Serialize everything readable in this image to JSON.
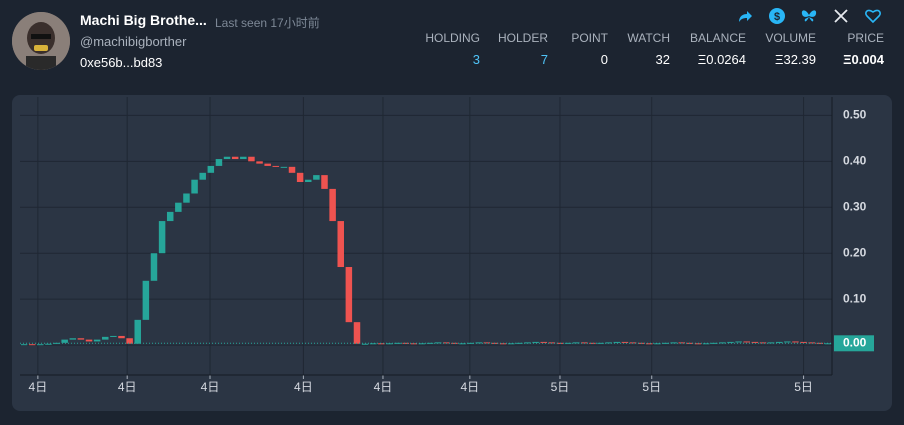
{
  "header": {
    "name": "Machi Big Brothe...",
    "last_seen": "Last seen 17小时前",
    "handle": "@machibigborther",
    "address": "0xe56b...bd83",
    "stats": [
      {
        "label": "HOLDING",
        "value": "3"
      },
      {
        "label": "HOLDER",
        "value": "7"
      },
      {
        "label": "POINT",
        "value": "0"
      },
      {
        "label": "WATCH",
        "value": "32"
      },
      {
        "label": "BALANCE",
        "value": "Ξ0.0264"
      },
      {
        "label": "VOLUME",
        "value": "Ξ32.39"
      },
      {
        "label": "PRICE",
        "value": "Ξ0.004"
      }
    ]
  },
  "chart_data": {
    "type": "candlestick",
    "up_color": "#26a69a",
    "down_color": "#ef5350",
    "grid": true,
    "ylim": [
      -0.065,
      0.54
    ],
    "yticks": [
      {
        "value": 0,
        "label": "0.00"
      },
      {
        "value": 0.1,
        "label": "0.10"
      },
      {
        "value": 0.2,
        "label": "0.20"
      },
      {
        "value": 0.3,
        "label": "0.30"
      },
      {
        "value": 0.4,
        "label": "0.40"
      },
      {
        "value": 0.5,
        "label": "0.50"
      }
    ],
    "xlim": [
      -0.5,
      99.5
    ],
    "xticks": [
      {
        "value": 1.7,
        "label": "4日"
      },
      {
        "value": 12.7,
        "label": "4日"
      },
      {
        "value": 22.9,
        "label": "4日"
      },
      {
        "value": 34.4,
        "label": "4日"
      },
      {
        "value": 44.2,
        "label": "4日"
      },
      {
        "value": 54.9,
        "label": "4日"
      },
      {
        "value": 66,
        "label": "5日"
      },
      {
        "value": 77.3,
        "label": "5日"
      },
      {
        "value": 96,
        "label": "5日"
      }
    ],
    "price_marker": {
      "value": 0.004,
      "label": "0.00"
    },
    "open": [
      0.001,
      0.002,
      0.001,
      0.002,
      0.003,
      0.005,
      0.012,
      0.015,
      0.012,
      0.008,
      0.012,
      0.018,
      0.02,
      0.015,
      0.003,
      0.055,
      0.14,
      0.2,
      0.27,
      0.29,
      0.31,
      0.33,
      0.36,
      0.375,
      0.39,
      0.405,
      0.41,
      0.405,
      0.41,
      0.4,
      0.395,
      0.39,
      0.388,
      0.388,
      0.375,
      0.355,
      0.36,
      0.37,
      0.34,
      0.27,
      0.17,
      0.05,
      0.003,
      0.003,
      0.004,
      0.003,
      0.004,
      0.005,
      0.004,
      0.003,
      0.004,
      0.005,
      0.006,
      0.005,
      0.004,
      0.004,
      0.005,
      0.006,
      0.005,
      0.004,
      0.003,
      0.004,
      0.005,
      0.006,
      0.007,
      0.006,
      0.005,
      0.004,
      0.005,
      0.006,
      0.005,
      0.004,
      0.005,
      0.006,
      0.007,
      0.006,
      0.005,
      0.004,
      0.003,
      0.004,
      0.005,
      0.006,
      0.005,
      0.004,
      0.003,
      0.004,
      0.005,
      0.006,
      0.007,
      0.008,
      0.007,
      0.006,
      0.005,
      0.006,
      0.007,
      0.008,
      0.007,
      0.006,
      0.005,
      0.004
    ],
    "close": [
      0.002,
      0.001,
      0.002,
      0.003,
      0.005,
      0.012,
      0.015,
      0.012,
      0.008,
      0.012,
      0.018,
      0.02,
      0.015,
      0.003,
      0.055,
      0.14,
      0.2,
      0.27,
      0.29,
      0.31,
      0.33,
      0.36,
      0.375,
      0.39,
      0.405,
      0.41,
      0.405,
      0.41,
      0.4,
      0.395,
      0.39,
      0.388,
      0.388,
      0.375,
      0.355,
      0.36,
      0.37,
      0.34,
      0.27,
      0.17,
      0.05,
      0.003,
      0.003,
      0.004,
      0.003,
      0.004,
      0.005,
      0.004,
      0.003,
      0.004,
      0.005,
      0.006,
      0.005,
      0.004,
      0.004,
      0.005,
      0.006,
      0.005,
      0.004,
      0.003,
      0.004,
      0.005,
      0.006,
      0.007,
      0.006,
      0.005,
      0.004,
      0.005,
      0.006,
      0.005,
      0.004,
      0.005,
      0.006,
      0.007,
      0.006,
      0.005,
      0.004,
      0.003,
      0.004,
      0.005,
      0.006,
      0.005,
      0.004,
      0.003,
      0.004,
      0.005,
      0.006,
      0.007,
      0.008,
      0.007,
      0.006,
      0.005,
      0.006,
      0.007,
      0.008,
      0.007,
      0.006,
      0.005,
      0.004,
      0.004
    ]
  }
}
